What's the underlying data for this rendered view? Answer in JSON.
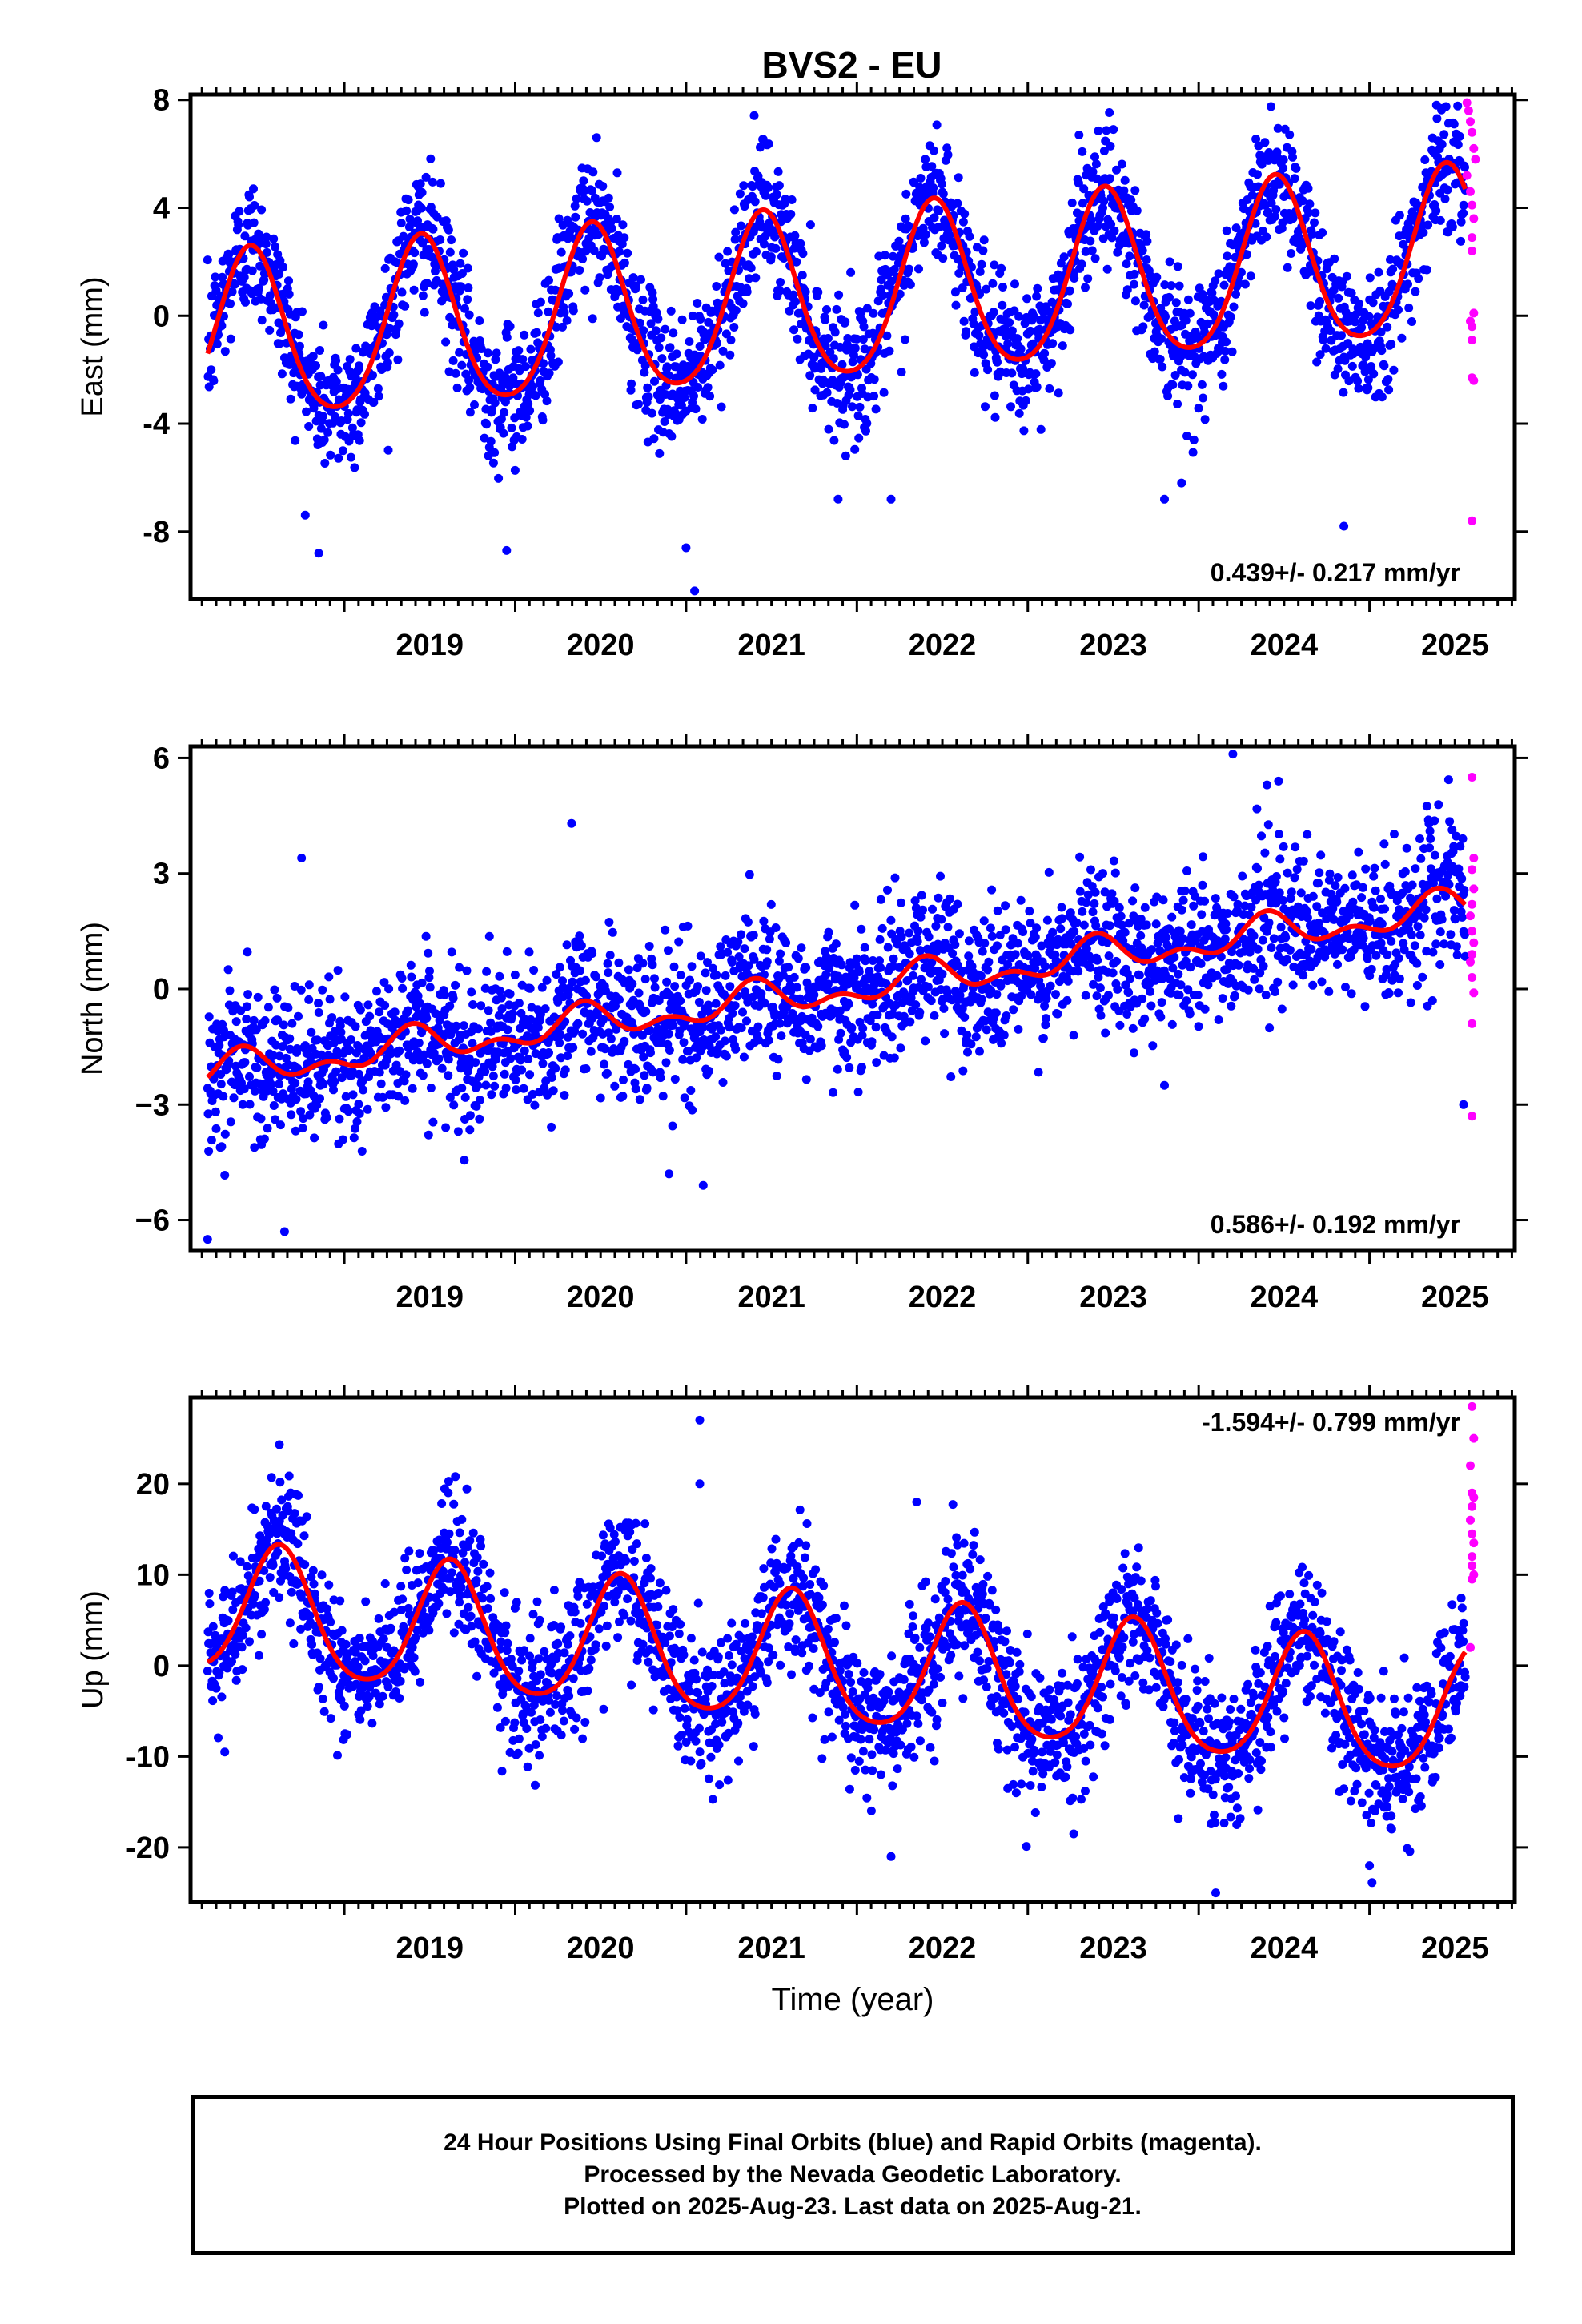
{
  "title": "BVS2 - EU",
  "colors": {
    "final_orbits": "#0000ff",
    "rapid_orbits": "#ff00ff",
    "model_fit": "#ff0000",
    "frame": "#000000"
  },
  "chart_data": [
    {
      "type": "scatter",
      "component": "east",
      "ylabel": "East (mm)",
      "xlabel": "",
      "xlim": [
        2018.1,
        2025.85
      ],
      "ylim": [
        -10.5,
        8.2
      ],
      "yticks": [
        -8,
        -4,
        0,
        4,
        8
      ],
      "ytick_labels": [
        "-8",
        "-4",
        "0",
        "4",
        "8"
      ],
      "xticks": [
        2019,
        2020,
        2021,
        2022,
        2023,
        2024,
        2025
      ],
      "xtick_labels": [
        "2019",
        "2020",
        "2021",
        "2022",
        "2023",
        "2024",
        "2025"
      ],
      "velocity_label": "0.439+/- 0.217 mm/yr",
      "velocity_label_position": "bottom-right",
      "fit_model": {
        "mean": -1.0,
        "t0": 2018.2,
        "slope": 0.439,
        "annual_amplitude": 3.1,
        "annual_peak": 2018.45,
        "semiannual_amplitude": 0.4,
        "semiannual_peak": 2018.45
      },
      "series": [
        {
          "name": "Final Orbits",
          "x_range": [
            2018.2,
            2025.56
          ],
          "n_points": 2500,
          "scatter_std": 1.25,
          "outliers": [
            [
              2018.85,
              -8.8
            ],
            [
              2019.95,
              -8.7
            ],
            [
              2021.0,
              -8.6
            ],
            [
              2021.05,
              -10.2
            ],
            [
              2022.2,
              -6.8
            ],
            [
              2023.8,
              -6.8
            ],
            [
              2023.9,
              -6.2
            ],
            [
              2024.85,
              -7.8
            ],
            [
              2022.4,
              5.8
            ],
            [
              2023.3,
              6.7
            ],
            [
              2024.35,
              6.3
            ]
          ]
        },
        {
          "name": "Rapid Orbits",
          "x": [
            2025.57,
            2025.58,
            2025.59,
            2025.6,
            2025.61,
            2025.62,
            2025.57,
            2025.59,
            2025.6,
            2025.61,
            2025.6,
            2025.6,
            2025.61,
            2025.59,
            2025.6,
            2025.6,
            2025.6,
            2025.61,
            2025.6
          ],
          "y": [
            7.9,
            7.6,
            7.2,
            6.8,
            6.2,
            5.8,
            5.2,
            4.6,
            4.1,
            3.6,
            2.9,
            2.4,
            0.1,
            -0.2,
            -0.4,
            -0.9,
            -2.3,
            -2.4,
            -7.6
          ]
        }
      ]
    },
    {
      "type": "scatter",
      "component": "north",
      "ylabel": "North (mm)",
      "xlabel": "",
      "xlim": [
        2018.1,
        2025.85
      ],
      "ylim": [
        -6.8,
        6.3
      ],
      "yticks": [
        -6,
        -3,
        0,
        3,
        6
      ],
      "ytick_labels": [
        "−6",
        "−3",
        "0",
        "3",
        "6"
      ],
      "xticks": [
        2019,
        2020,
        2021,
        2022,
        2023,
        2024,
        2025
      ],
      "xtick_labels": [
        "2019",
        "2020",
        "2021",
        "2022",
        "2023",
        "2024",
        "2025"
      ],
      "velocity_label": "0.586+/- 0.192 mm/yr",
      "velocity_label_position": "bottom-right",
      "fit_model": {
        "mean": -2.2,
        "t0": 2018.2,
        "slope": 0.586,
        "annual_amplitude": 0.35,
        "annual_peak": 2018.4,
        "semiannual_amplitude": 0.25,
        "semiannual_peak": 2018.4
      },
      "series": [
        {
          "name": "Final Orbits",
          "x_range": [
            2018.2,
            2025.56
          ],
          "n_points": 2500,
          "scatter_std": 0.95,
          "outliers": [
            [
              2018.2,
              -6.5
            ],
            [
              2018.65,
              -6.3
            ],
            [
              2018.75,
              3.4
            ],
            [
              2020.33,
              4.3
            ],
            [
              2024.2,
              6.1
            ],
            [
              2024.4,
              5.3
            ],
            [
              2023.8,
              -2.5
            ],
            [
              2025.55,
              -3.0
            ],
            [
              2020.9,
              -4.8
            ],
            [
              2021.1,
              -5.1
            ]
          ]
        },
        {
          "name": "Rapid Orbits",
          "x": [
            2025.6,
            2025.61,
            2025.6,
            2025.61,
            2025.6,
            2025.59,
            2025.6,
            2025.61,
            2025.6,
            2025.59,
            2025.6,
            2025.61,
            2025.6,
            2025.6
          ],
          "y": [
            5.5,
            3.4,
            3.1,
            2.6,
            2.2,
            1.9,
            1.5,
            1.2,
            0.9,
            0.7,
            0.3,
            -0.1,
            -0.9,
            -3.3
          ]
        }
      ]
    },
    {
      "type": "scatter",
      "component": "up",
      "ylabel": "Up (mm)",
      "xlabel": "Time (year)",
      "xlim": [
        2018.1,
        2025.85
      ],
      "ylim": [
        -26,
        29.5
      ],
      "yticks": [
        -20,
        -10,
        0,
        10,
        20
      ],
      "ytick_labels": [
        "-20",
        "-10",
        "0",
        "10",
        "20"
      ],
      "xticks": [
        2019,
        2020,
        2021,
        2022,
        2023,
        2024,
        2025
      ],
      "xtick_labels": [
        "2019",
        "2020",
        "2021",
        "2022",
        "2023",
        "2024",
        "2025"
      ],
      "velocity_label": "-1.594+/- 0.799 mm/yr",
      "velocity_label_position": "top-right",
      "fit_model": {
        "mean": 6.0,
        "t0": 2018.2,
        "slope": -1.594,
        "annual_amplitude": 7.0,
        "annual_peak": 2018.62,
        "semiannual_amplitude": 1.0,
        "semiannual_peak": 2018.62
      },
      "series": [
        {
          "name": "Final Orbits",
          "x_range": [
            2018.2,
            2025.56
          ],
          "n_points": 2500,
          "scatter_std": 3.8,
          "outliers": [
            [
              2018.3,
              -9.5
            ],
            [
              2018.62,
              24.3
            ],
            [
              2019.65,
              20.8
            ],
            [
              2021.08,
              27.0
            ],
            [
              2021.08,
              20.0
            ],
            [
              2022.2,
              -21.0
            ],
            [
              2022.35,
              18.0
            ],
            [
              2024.1,
              -25.0
            ],
            [
              2025.0,
              -22.0
            ]
          ]
        },
        {
          "name": "Rapid Orbits",
          "x": [
            2025.6,
            2025.61,
            2025.59,
            2025.6,
            2025.61,
            2025.6,
            2025.59,
            2025.6,
            2025.61,
            2025.6,
            2025.6,
            2025.61,
            2025.6,
            2025.59
          ],
          "y": [
            28.5,
            25.0,
            22.0,
            19.0,
            18.5,
            17.5,
            16.0,
            14.5,
            13.5,
            12.0,
            11.0,
            10.0,
            9.5,
            2.0
          ]
        }
      ]
    }
  ],
  "caption": {
    "line1": "24 Hour Positions Using Final Orbits (blue) and Rapid Orbits (magenta).",
    "line2": "Processed by the Nevada Geodetic Laboratory.",
    "line3": "Plotted on 2025-Aug-23. Last data on 2025-Aug-21."
  }
}
